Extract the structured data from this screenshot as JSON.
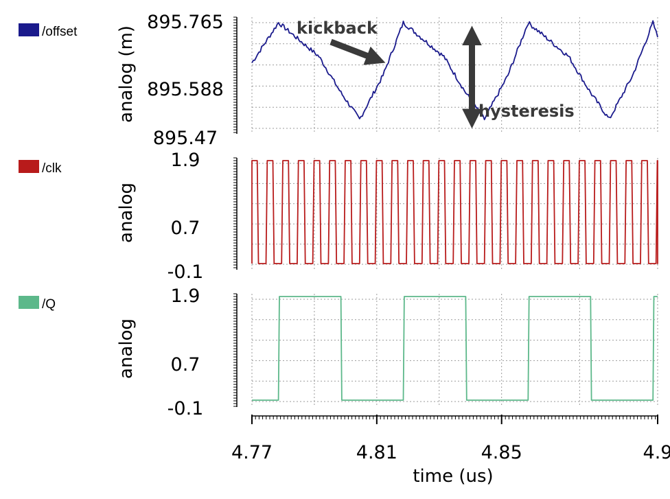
{
  "chart_data": {
    "type": "line",
    "x_axis": {
      "label": "time (us)",
      "range": [
        4.77,
        4.9
      ],
      "ticks": [
        "4.77",
        "4.81",
        "4.85",
        "4.9"
      ],
      "tick_values": [
        4.77,
        4.81,
        4.85,
        4.9
      ]
    },
    "grid": true,
    "legend_placement": "left",
    "panels": [
      {
        "series_name": "/offset",
        "color": "#1a1a8c",
        "y_label": "analog (m)",
        "y_range": [
          895.47,
          895.79
        ],
        "y_ticks": [
          "895.765",
          "895.588",
          "895.47"
        ],
        "y_tick_values": [
          895.765,
          895.588,
          895.47
        ],
        "x": [
          4.77,
          4.7785,
          4.7915,
          4.7985,
          4.8045,
          4.812,
          4.8185,
          4.8315,
          4.8385,
          4.8445,
          4.852,
          4.8585,
          4.8715,
          4.8785,
          4.8845,
          4.892,
          4.8985,
          4.9
        ],
        "values": [
          895.665,
          895.775,
          895.682,
          895.583,
          895.51,
          895.63,
          895.775,
          895.682,
          895.583,
          895.51,
          895.63,
          895.775,
          895.682,
          895.583,
          895.51,
          895.63,
          895.775,
          895.735
        ],
        "annotations": [
          {
            "text": "kickback",
            "x": 4.8115,
            "y": 895.665
          },
          {
            "text": "hysteresis",
            "x": 4.8405,
            "y_range": [
              895.51,
              895.775
            ]
          }
        ]
      },
      {
        "series_name": "/clk",
        "color": "#b81b1b",
        "y_label": "analog",
        "y_range": [
          -0.1,
          1.9
        ],
        "y_ticks": [
          "1.9",
          "0.7",
          "-0.1"
        ],
        "y_tick_values": [
          1.9,
          0.7,
          -0.1
        ],
        "period_us": 0.005,
        "high": 1.9,
        "low": -0.1,
        "first_rise": 4.7745
      },
      {
        "series_name": "/Q",
        "color": "#5cb88a",
        "y_label": "analog",
        "y_range": [
          -0.1,
          1.9
        ],
        "y_ticks": [
          "1.9",
          "0.7",
          "-0.1"
        ],
        "y_tick_values": [
          1.9,
          0.7,
          -0.1
        ],
        "high": 1.9,
        "low": -0.1,
        "edges": [
          {
            "x": 4.7785,
            "to": 1.9
          },
          {
            "x": 4.7985,
            "to": -0.1
          },
          {
            "x": 4.8185,
            "to": 1.9
          },
          {
            "x": 4.8385,
            "to": -0.1
          },
          {
            "x": 4.8585,
            "to": 1.9
          },
          {
            "x": 4.8785,
            "to": -0.1
          },
          {
            "x": 4.8985,
            "to": 1.9
          }
        ]
      }
    ]
  }
}
